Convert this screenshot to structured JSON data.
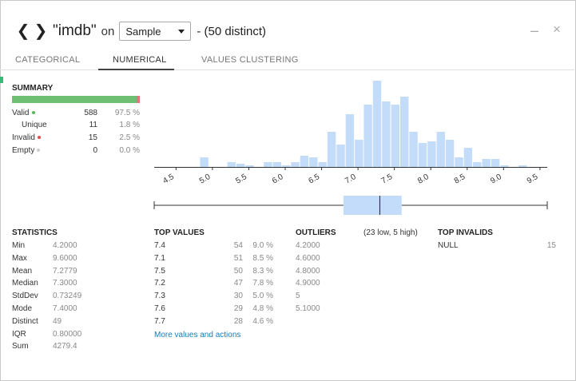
{
  "header": {
    "title": "\"imdb\"",
    "on_word": "on",
    "sample_select": "Sample",
    "distinct_text": "- (50 distinct)",
    "minimize_glyph": "–",
    "close_glyph": "×"
  },
  "tabs": [
    {
      "label": "CATEGORICAL",
      "active": false
    },
    {
      "label": "NUMERICAL",
      "active": true
    },
    {
      "label": "VALUES CLUSTERING",
      "active": false
    }
  ],
  "summary": {
    "title": "SUMMARY",
    "valid_fraction": 0.975,
    "rows": [
      {
        "label": "Valid",
        "count": "588",
        "pct": "97.5 %",
        "dot_color": "#5cb85c"
      },
      {
        "label": "Unique",
        "count": "11",
        "pct": "1.8 %",
        "dot_color": ""
      },
      {
        "label": "Invalid",
        "count": "15",
        "pct": "2.5 %",
        "dot_color": "#d9534f"
      },
      {
        "label": "Empty",
        "count": "0",
        "pct": "0.0 %",
        "dot_color": "#cccccc"
      }
    ]
  },
  "colors": {
    "bar_fill": "#c3dcfa",
    "valid_bar": "#6fbf73",
    "invalid_bar": "#e8737a",
    "link": "#1a7bb7"
  },
  "chart_data": {
    "type": "bar",
    "title": "",
    "xlabel": "",
    "ylabel": "",
    "xlim": [
      4.2,
      9.6
    ],
    "ylim": [
      0,
      54
    ],
    "tick_labels": [
      "4.5",
      "5.0",
      "5.5",
      "6.0",
      "6.5",
      "7.0",
      "7.5",
      "8.0",
      "8.5",
      "9.0",
      "9.5"
    ],
    "bin_width": 0.125,
    "bins": [
      {
        "x0": 4.2,
        "count": 0
      },
      {
        "x0": 4.325,
        "count": 0
      },
      {
        "x0": 4.45,
        "count": 0
      },
      {
        "x0": 4.575,
        "count": 0
      },
      {
        "x0": 4.7,
        "count": 0
      },
      {
        "x0": 4.825,
        "count": 6
      },
      {
        "x0": 4.95,
        "count": 0
      },
      {
        "x0": 5.075,
        "count": 0
      },
      {
        "x0": 5.2,
        "count": 3
      },
      {
        "x0": 5.325,
        "count": 2
      },
      {
        "x0": 5.45,
        "count": 1
      },
      {
        "x0": 5.575,
        "count": 0
      },
      {
        "x0": 5.7,
        "count": 3
      },
      {
        "x0": 5.825,
        "count": 3
      },
      {
        "x0": 5.95,
        "count": 1
      },
      {
        "x0": 6.075,
        "count": 3
      },
      {
        "x0": 6.2,
        "count": 7
      },
      {
        "x0": 6.325,
        "count": 6
      },
      {
        "x0": 6.45,
        "count": 3
      },
      {
        "x0": 6.575,
        "count": 22
      },
      {
        "x0": 6.7,
        "count": 14
      },
      {
        "x0": 6.825,
        "count": 33
      },
      {
        "x0": 6.95,
        "count": 17
      },
      {
        "x0": 7.075,
        "count": 39
      },
      {
        "x0": 7.2,
        "count": 54
      },
      {
        "x0": 7.325,
        "count": 41
      },
      {
        "x0": 7.45,
        "count": 39
      },
      {
        "x0": 7.575,
        "count": 44
      },
      {
        "x0": 7.7,
        "count": 22
      },
      {
        "x0": 7.825,
        "count": 15
      },
      {
        "x0": 7.95,
        "count": 16
      },
      {
        "x0": 8.075,
        "count": 22
      },
      {
        "x0": 8.2,
        "count": 17
      },
      {
        "x0": 8.325,
        "count": 6
      },
      {
        "x0": 8.45,
        "count": 12
      },
      {
        "x0": 8.575,
        "count": 3
      },
      {
        "x0": 8.7,
        "count": 5
      },
      {
        "x0": 8.825,
        "count": 5
      },
      {
        "x0": 8.95,
        "count": 1
      },
      {
        "x0": 9.075,
        "count": 0
      },
      {
        "x0": 9.2,
        "count": 1
      },
      {
        "x0": 9.325,
        "count": 0
      },
      {
        "x0": 9.45,
        "count": 0
      }
    ],
    "boxplot": {
      "min": 4.2,
      "q1": 6.8,
      "median": 7.3,
      "q3": 7.6,
      "max": 9.6
    }
  },
  "statistics": {
    "title": "STATISTICS",
    "rows": [
      {
        "label": "Min",
        "value": "4.2000"
      },
      {
        "label": "Max",
        "value": "9.6000"
      },
      {
        "label": "Mean",
        "value": "7.2779"
      },
      {
        "label": "Median",
        "value": "7.3000"
      },
      {
        "label": "StdDev",
        "value": "0.73249"
      },
      {
        "label": "Mode",
        "value": "7.4000"
      },
      {
        "label": "Distinct",
        "value": "49"
      },
      {
        "label": "IQR",
        "value": "0.80000"
      },
      {
        "label": "Sum",
        "value": "4279.4"
      }
    ]
  },
  "top_values": {
    "title": "TOP VALUES",
    "rows": [
      {
        "value": "7.4",
        "count": "54",
        "pct": "9.0 %"
      },
      {
        "value": "7.1",
        "count": "51",
        "pct": "8.5 %"
      },
      {
        "value": "7.5",
        "count": "50",
        "pct": "8.3 %"
      },
      {
        "value": "7.2",
        "count": "47",
        "pct": "7.8 %"
      },
      {
        "value": "7.3",
        "count": "30",
        "pct": "5.0 %"
      },
      {
        "value": "7.6",
        "count": "29",
        "pct": "4.8 %"
      },
      {
        "value": "7.7",
        "count": "28",
        "pct": "4.6 %"
      }
    ],
    "more_link": "More values and actions"
  },
  "outliers": {
    "title": "OUTLIERS",
    "summary": "(23 low, 5 high)",
    "values": [
      "4.2000",
      "4.6000",
      "4.8000",
      "4.9000",
      "5",
      "5.1000"
    ]
  },
  "top_invalids": {
    "title": "TOP INVALIDS",
    "rows": [
      {
        "value": "NULL",
        "count": "15"
      }
    ]
  }
}
